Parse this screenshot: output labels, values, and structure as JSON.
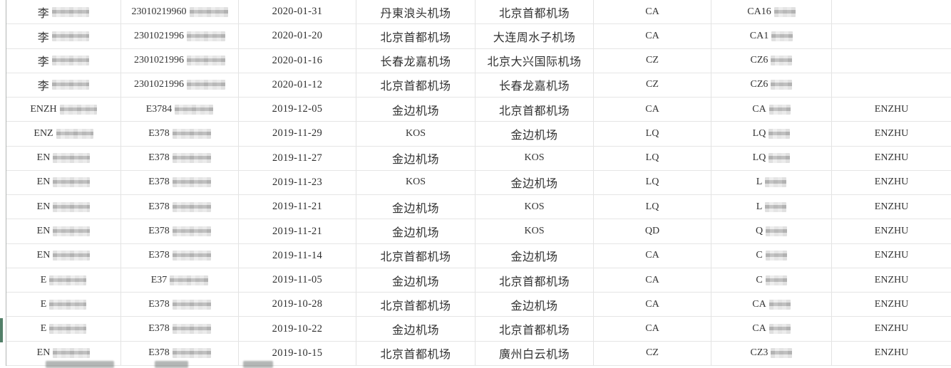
{
  "colors": {
    "row_marker": "#527f68",
    "grid_line": "#e5e5e5",
    "left_edge_line": "#b2b6b4",
    "text": "#333333"
  },
  "selection": {
    "marked_row_index": 13
  },
  "table": {
    "columns": [
      "passenger_name",
      "id_number",
      "flight_date",
      "departure_airport",
      "arrival_airport",
      "airline_code",
      "flight_number",
      "passenger_tag"
    ],
    "rows": [
      {
        "name": "李",
        "id": "23010219960",
        "date": "2020-01-31",
        "from": "丹東浪头机场",
        "to": "北京首都机场",
        "carrier": "CA",
        "flight": "CA16",
        "tag": ""
      },
      {
        "name": "李",
        "id": "2301021996",
        "date": "2020-01-20",
        "from": "北京首都机场",
        "to": "大连周水子机场",
        "carrier": "CA",
        "flight": "CA1",
        "tag": ""
      },
      {
        "name": "李",
        "id": "2301021996",
        "date": "2020-01-16",
        "from": "长春龙嘉机场",
        "to": "北京大兴国际机场",
        "carrier": "CZ",
        "flight": "CZ6",
        "tag": ""
      },
      {
        "name": "李",
        "id": "2301021996",
        "date": "2020-01-12",
        "from": "北京首都机场",
        "to": "长春龙嘉机场",
        "carrier": "CZ",
        "flight": "CZ6",
        "tag": ""
      },
      {
        "name": "ENZH",
        "id": "E3784",
        "date": "2019-12-05",
        "from": "金边机场",
        "to": "北京首都机场",
        "carrier": "CA",
        "flight": "CA",
        "tag": "ENZHU"
      },
      {
        "name": "ENZ",
        "id": "E378",
        "date": "2019-11-29",
        "from": "KOS",
        "to": "金边机场",
        "carrier": "LQ",
        "flight": "LQ",
        "tag": "ENZHU"
      },
      {
        "name": "EN",
        "id": "E378",
        "date": "2019-11-27",
        "from": "金边机场",
        "to": "KOS",
        "carrier": "LQ",
        "flight": "LQ",
        "tag": "ENZHU"
      },
      {
        "name": "EN",
        "id": "E378",
        "date": "2019-11-23",
        "from": "KOS",
        "to": "金边机场",
        "carrier": "LQ",
        "flight": "L",
        "tag": "ENZHU"
      },
      {
        "name": "EN",
        "id": "E378",
        "date": "2019-11-21",
        "from": "金边机场",
        "to": "KOS",
        "carrier": "LQ",
        "flight": "L",
        "tag": "ENZHU"
      },
      {
        "name": "EN",
        "id": "E378",
        "date": "2019-11-21",
        "from": "金边机场",
        "to": "KOS",
        "carrier": "QD",
        "flight": "Q",
        "tag": "ENZHU"
      },
      {
        "name": "EN",
        "id": "E378",
        "date": "2019-11-14",
        "from": "北京首都机场",
        "to": "金边机场",
        "carrier": "CA",
        "flight": "C",
        "tag": "ENZHU"
      },
      {
        "name": "E",
        "id": "E37",
        "date": "2019-11-05",
        "from": "金边机场",
        "to": "北京首都机场",
        "carrier": "CA",
        "flight": "C",
        "tag": "ENZHU"
      },
      {
        "name": "E",
        "id": "E378",
        "date": "2019-10-28",
        "from": "北京首都机场",
        "to": "金边机场",
        "carrier": "CA",
        "flight": "CA",
        "tag": "ENZHU"
      },
      {
        "name": "E",
        "id": "E378",
        "date": "2019-10-22",
        "from": "金边机场",
        "to": "北京首都机场",
        "carrier": "CA",
        "flight": "CA",
        "tag": "ENZHU"
      },
      {
        "name": "EN",
        "id": "E378",
        "date": "2019-10-15",
        "from": "北京首都机场",
        "to": "廣州白云机场",
        "carrier": "CZ",
        "flight": "CZ3",
        "tag": "ENZHU"
      }
    ]
  },
  "partial_next_row": {
    "present": true
  }
}
